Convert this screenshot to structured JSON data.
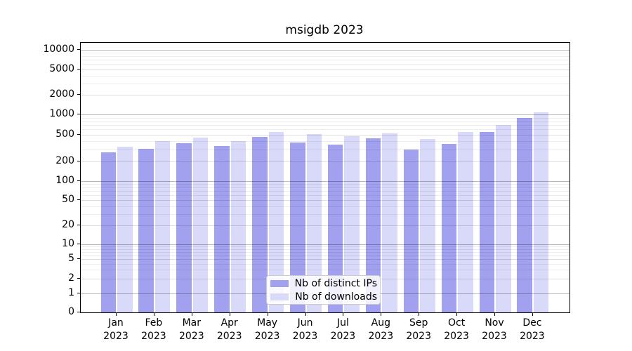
{
  "title": "msigdb 2023",
  "colors": {
    "distinct_ips": "#a1a1f0",
    "downloads": "#d9d9f9",
    "axis": "#000000",
    "grid_major": "#bababa",
    "grid_minor": "#ececec"
  },
  "legend": {
    "items": [
      "Nb of distinct IPs",
      "Nb of downloads"
    ],
    "position": "lower center"
  },
  "x_axis": {
    "months": [
      "Jan",
      "Feb",
      "Mar",
      "Apr",
      "May",
      "Jun",
      "Jul",
      "Aug",
      "Sep",
      "Oct",
      "Nov",
      "Dec"
    ],
    "year": "2023"
  },
  "y_axis": {
    "scale": "symlog",
    "ticks": [
      0,
      1,
      2,
      5,
      10,
      20,
      50,
      100,
      200,
      500,
      1000,
      2000,
      5000,
      10000
    ]
  },
  "chart_data": {
    "type": "bar",
    "title": "msigdb 2023",
    "categories": [
      "Jan 2023",
      "Feb 2023",
      "Mar 2023",
      "Apr 2023",
      "May 2023",
      "Jun 2023",
      "Jul 2023",
      "Aug 2023",
      "Sep 2023",
      "Oct 2023",
      "Nov 2023",
      "Dec 2023"
    ],
    "series": [
      {
        "name": "Nb of distinct IPs",
        "color": "#a1a1f0",
        "values": [
          270,
          310,
          370,
          340,
          460,
          380,
          355,
          445,
          300,
          360,
          555,
          900
        ]
      },
      {
        "name": "Nb of downloads",
        "color": "#d9d9f9",
        "values": [
          330,
          400,
          450,
          405,
          555,
          510,
          480,
          520,
          430,
          550,
          695,
          1090
        ]
      }
    ],
    "xlabel": "",
    "ylabel": "",
    "ylim": [
      0,
      14000
    ],
    "yticks": [
      0,
      1,
      2,
      5,
      10,
      20,
      50,
      100,
      200,
      500,
      1000,
      2000,
      5000,
      10000
    ],
    "grid": true,
    "legend_position": "lower center"
  }
}
